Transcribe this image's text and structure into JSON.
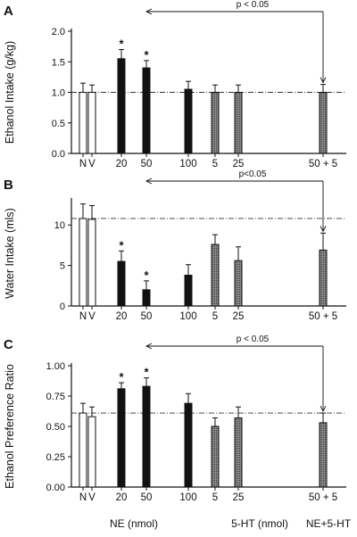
{
  "x_group_labels": [
    "NE (nmol)",
    "5-HT (nmol)",
    "NE+5-HT"
  ],
  "chart_data": [
    {
      "type": "bar",
      "panel": "A",
      "title": "",
      "xlabel": "",
      "ylabel": "Ethanol Intake (g/kg)",
      "ylim": [
        0,
        2.0
      ],
      "yticks": [
        "0.0",
        "0.5",
        "1.0",
        "1.5",
        "2.0"
      ],
      "yticks_values": [
        0,
        0.5,
        1.0,
        1.5,
        2.0
      ],
      "categories": [
        "N",
        "V",
        "20",
        "50",
        "100",
        "5",
        "25",
        "50 + 5"
      ],
      "values": [
        1.0,
        1.0,
        1.55,
        1.4,
        1.05,
        1.0,
        1.0,
        1.0
      ],
      "errors": [
        0.15,
        0.12,
        0.15,
        0.12,
        0.13,
        0.12,
        0.12,
        0.13
      ],
      "fills": [
        "open",
        "open",
        "solid",
        "solid",
        "solid",
        "hatched",
        "hatched",
        "hatched"
      ],
      "significant": [
        false,
        false,
        true,
        true,
        false,
        false,
        false,
        false
      ],
      "reference_line": 1.0,
      "significance_note": "p < 0.05",
      "comparison": [
        3,
        7
      ]
    },
    {
      "type": "bar",
      "panel": "B",
      "title": "",
      "xlabel": "",
      "ylabel": "Water Intake (mls)",
      "ylim": [
        0,
        13
      ],
      "yticks": [
        "0",
        "5",
        "10"
      ],
      "yticks_values": [
        0,
        5,
        10
      ],
      "categories": [
        "N",
        "V",
        "20",
        "50",
        "100",
        "5",
        "25",
        "50 + 5"
      ],
      "values": [
        10.8,
        10.7,
        5.5,
        2.0,
        3.8,
        7.6,
        5.6,
        6.9
      ],
      "errors": [
        1.8,
        1.7,
        1.3,
        1.1,
        1.3,
        1.2,
        1.7,
        2.1
      ],
      "fills": [
        "open",
        "open",
        "solid",
        "solid",
        "solid",
        "hatched",
        "hatched",
        "hatched"
      ],
      "significant": [
        false,
        false,
        true,
        true,
        false,
        false,
        false,
        false
      ],
      "reference_line": 10.8,
      "significance_note": "p<0.05",
      "comparison": [
        3,
        7
      ]
    },
    {
      "type": "bar",
      "panel": "C",
      "title": "",
      "xlabel": "",
      "ylabel": "Ethanol Preference Ratio",
      "ylim": [
        0,
        1.0
      ],
      "yticks": [
        "0.00",
        "0.25",
        "0.50",
        "0.75",
        "1.00"
      ],
      "yticks_values": [
        0,
        0.25,
        0.5,
        0.75,
        1.0
      ],
      "categories": [
        "N",
        "V",
        "20",
        "50",
        "100",
        "5",
        "25",
        "50 + 5"
      ],
      "values": [
        0.61,
        0.58,
        0.81,
        0.83,
        0.69,
        0.5,
        0.57,
        0.53
      ],
      "errors": [
        0.08,
        0.08,
        0.05,
        0.07,
        0.08,
        0.07,
        0.09,
        0.08
      ],
      "fills": [
        "open",
        "open",
        "solid",
        "solid",
        "solid",
        "hatched",
        "hatched",
        "hatched"
      ],
      "significant": [
        false,
        false,
        true,
        true,
        false,
        false,
        false,
        false
      ],
      "reference_line": 0.61,
      "significance_note": "p < 0.05",
      "comparison": [
        3,
        7
      ]
    }
  ]
}
